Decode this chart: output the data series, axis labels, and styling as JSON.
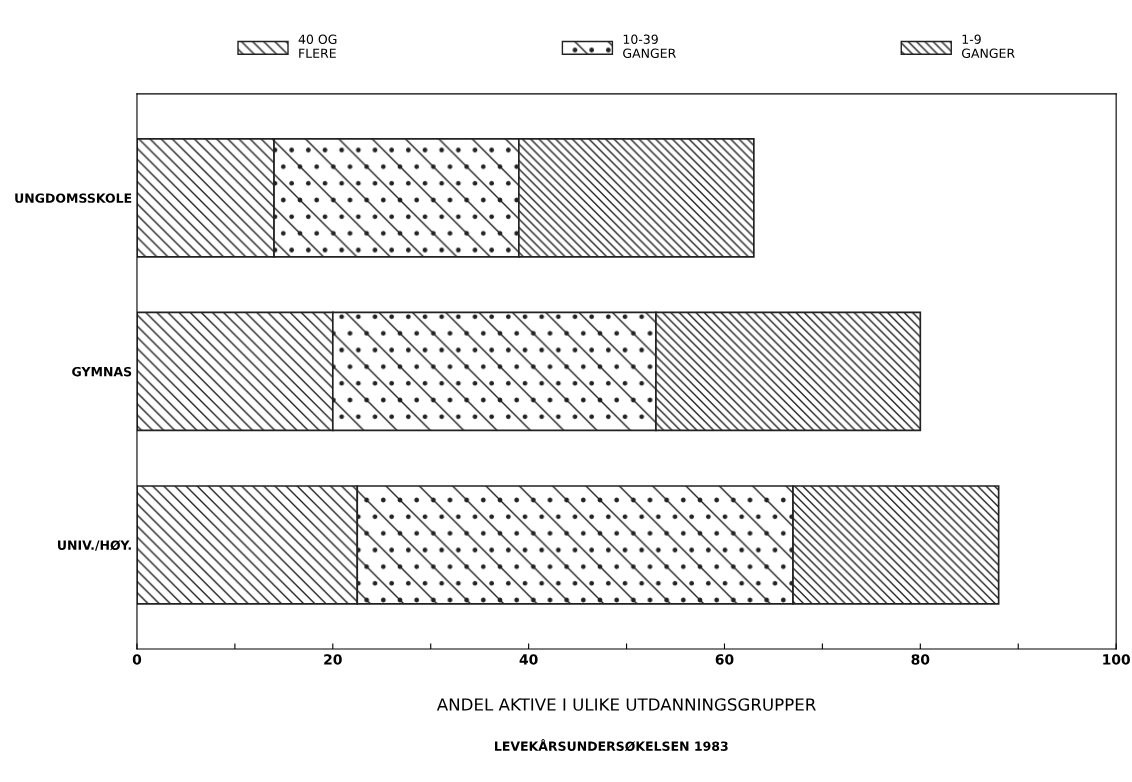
{
  "chart_data": {
    "type": "bar",
    "orientation": "horizontal",
    "stacked": true,
    "categories": [
      "UNGDOMSSKOLE",
      "GYMNAS",
      "UNIV./HØY."
    ],
    "series": [
      {
        "name": "40 OG\nFLERE",
        "color": "#222222",
        "values": [
          14,
          20,
          22.5
        ]
      },
      {
        "name": "10-39\nGANGER",
        "color": "#222222",
        "values": [
          25,
          33,
          44.5
        ]
      },
      {
        "name": "1-9\nGANGER",
        "color": "#222222",
        "values": [
          24,
          27,
          21
        ]
      }
    ],
    "xlim": [
      0,
      100
    ],
    "xticks": [
      0,
      {
        "value": 10,
        "label": null
      },
      20,
      {
        "value": 30,
        "label": null
      },
      40,
      {
        "value": 50,
        "label": null
      },
      60,
      {
        "value": 70,
        "label": null
      },
      80,
      {
        "value": 90,
        "label": null
      },
      100
    ],
    "xlabel": "ANDEL AKTIVE I ULIKE UTDANNINGSGRUPPER",
    "annotations": [
      "LEVEKÅRSUNDERSØKELSEN 1983"
    ],
    "legend": "top",
    "grid": false
  }
}
